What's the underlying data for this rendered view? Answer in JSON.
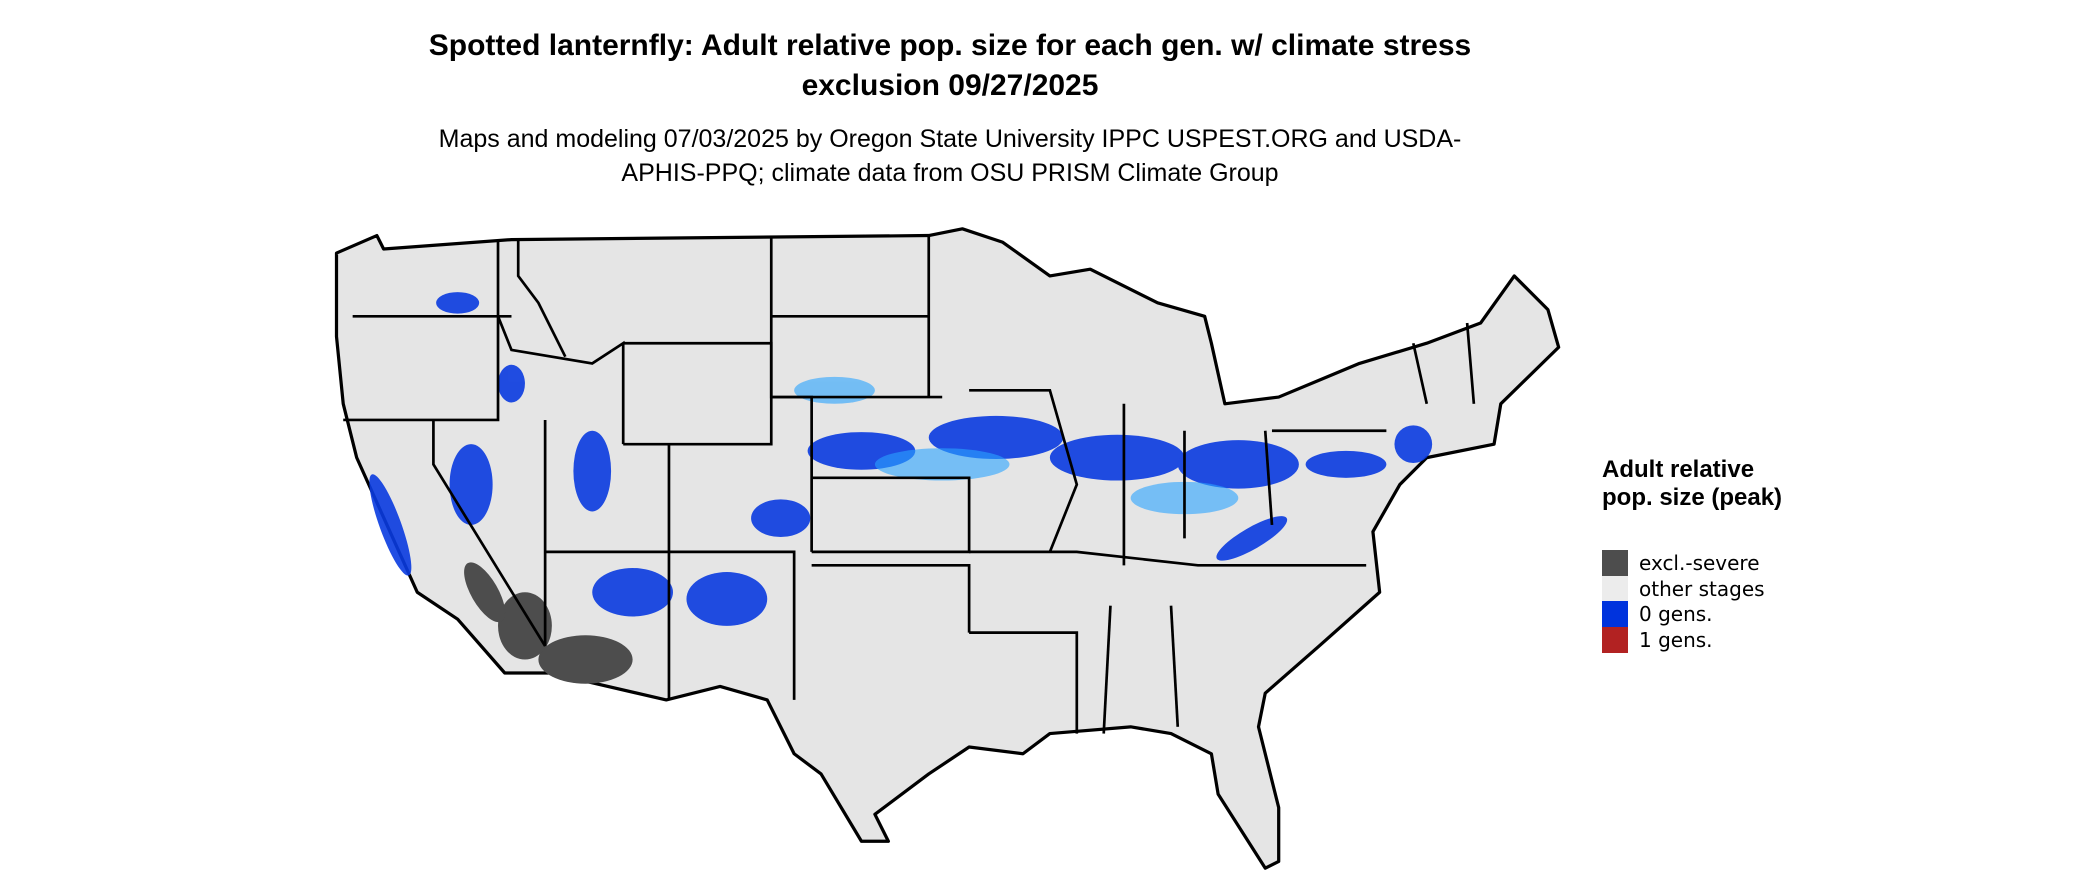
{
  "title": "Spotted lanternfly: Adult relative pop. size for each gen. w/ climate stress exclusion 09/27/2025",
  "subtitle": "Maps and modeling 07/03/2025 by Oregon State University IPPC USPEST.ORG and USDA-APHIS-PPQ; climate data from OSU PRISM Climate Group",
  "legend": {
    "title": "Adult relative pop. size (peak)",
    "items": [
      {
        "label": "excl.-severe",
        "color": "#4d4d4d"
      },
      {
        "label": "other stages",
        "color": "#ececec"
      },
      {
        "label": "0 gens.",
        "color": "#0033dd"
      },
      {
        "label": "1 gens.",
        "color": "#b22222"
      }
    ]
  }
}
